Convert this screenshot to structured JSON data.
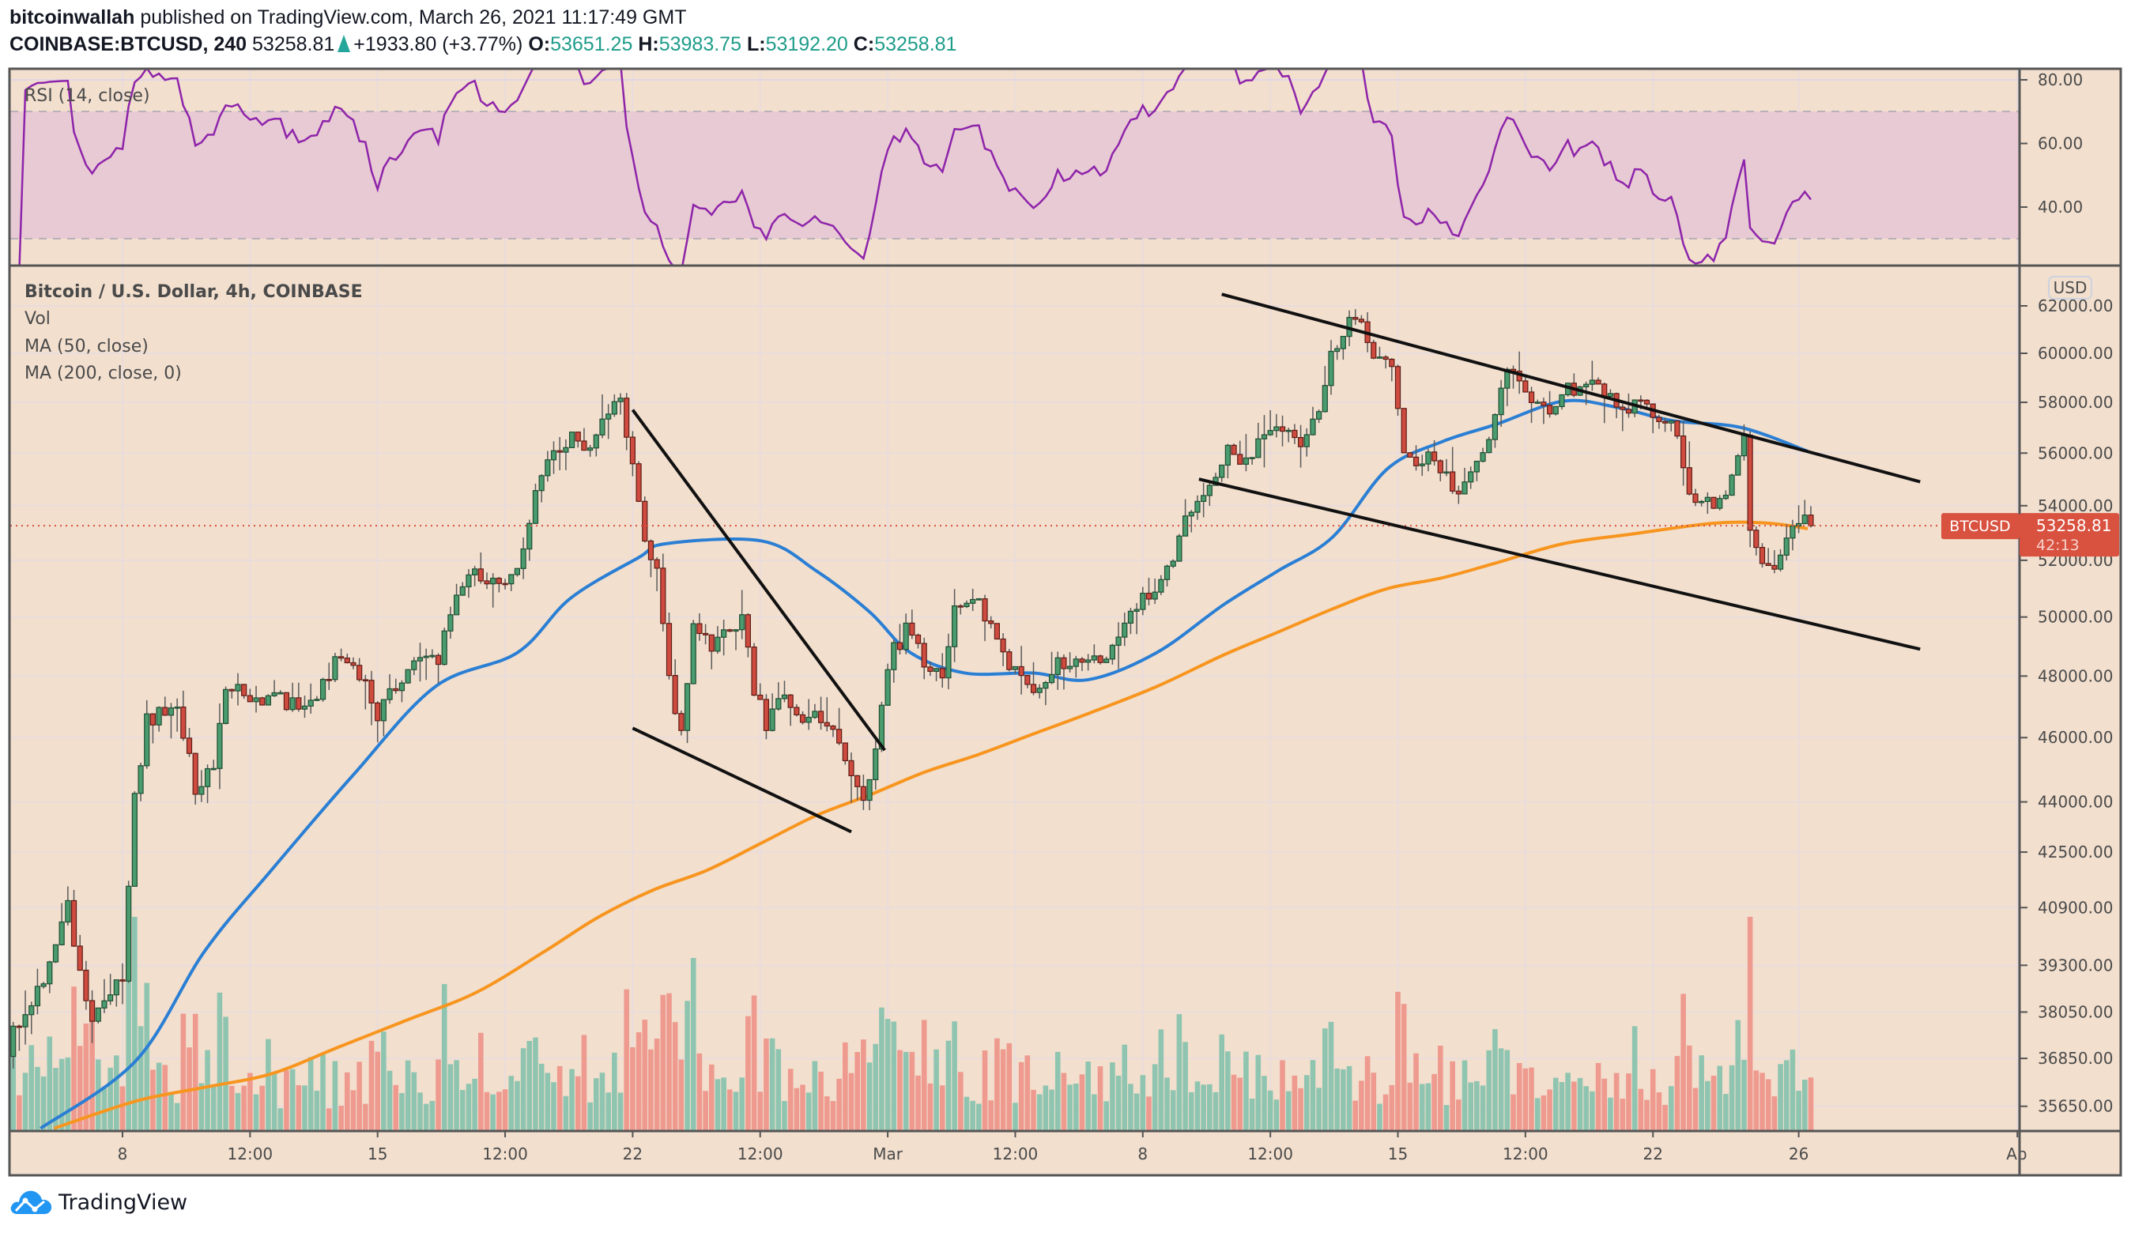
{
  "header": {
    "author": "bitcoinwallah",
    "published": "published on TradingView.com, March 26, 2021 11:17:49 GMT",
    "symbol": "COINBASE:BTCUSD, 240",
    "last": "53258.81",
    "change": "+1933.80 (+3.77%)",
    "o_label": "O:",
    "o": "53651.25",
    "h_label": "H:",
    "h": "53983.75",
    "l_label": "L:",
    "l": "53192.20",
    "c_label": "C:",
    "c": "53258.81"
  },
  "legend": {
    "rsi": "RSI (14, close)",
    "title": "Bitcoin / U.S. Dollar, 4h, COINBASE",
    "vol": "Vol",
    "ma50": "MA (50, close)",
    "ma200": "MA (200, close, 0)"
  },
  "price_axis": {
    "currency": "USD",
    "scale": "log",
    "ticks": [
      "62000.00",
      "60000.00",
      "58000.00",
      "56000.00",
      "54000.00",
      "52000.00",
      "50000.00",
      "48000.00",
      "46000.00",
      "44000.00",
      "42500.00",
      "40900.00",
      "39300.00",
      "38050.00",
      "36850.00",
      "35650.00"
    ]
  },
  "rsi_axis": {
    "ticks": [
      "80.00",
      "60.00",
      "40.00"
    ],
    "band": [
      30,
      70
    ]
  },
  "time_axis": {
    "labels": [
      {
        "label": "8",
        "t": "2021-02-08T00:00Z"
      },
      {
        "label": "12:00",
        "t": "2021-02-11T12:00Z"
      },
      {
        "label": "15",
        "t": "2021-02-15T00:00Z"
      },
      {
        "label": "12:00",
        "t": "2021-02-18T12:00Z"
      },
      {
        "label": "22",
        "t": "2021-02-22T00:00Z"
      },
      {
        "label": "12:00",
        "t": "2021-02-25T12:00Z"
      },
      {
        "label": "Mar",
        "t": "2021-03-01T00:00Z"
      },
      {
        "label": "12:00",
        "t": "2021-03-04T12:00Z"
      },
      {
        "label": "8",
        "t": "2021-03-08T00:00Z"
      },
      {
        "label": "12:00",
        "t": "2021-03-11T12:00Z"
      },
      {
        "label": "15",
        "t": "2021-03-15T00:00Z"
      },
      {
        "label": "12:00",
        "t": "2021-03-18T12:00Z"
      },
      {
        "label": "22",
        "t": "2021-03-22T00:00Z"
      },
      {
        "label": "26",
        "t": "2021-03-26T00:00Z"
      },
      {
        "label": "Ap",
        "t": "2021-04-01T00:00Z"
      }
    ]
  },
  "last_price_label": {
    "symbol": "BTCUSD",
    "price": "53258.81",
    "countdown": "42:13"
  },
  "footer": {
    "brand": "TradingView"
  },
  "colors": {
    "background": "#f2dfce",
    "up": "#4a9b6e",
    "down": "#cf4b3f",
    "vol_up": "#8fc5b0",
    "vol_down": "#ee9a8f",
    "ma50": "#2a7fd4",
    "ma200": "#f7951e",
    "rsi": "#8e24aa",
    "last_price": "#d9513f",
    "accent_teal": "#1e9c8a"
  },
  "chart_data": {
    "type": "candlestick",
    "interval": "4h",
    "last_candle": {
      "t": "2021-03-26T08:00Z",
      "o": 53651.25,
      "h": 53983.75,
      "l": 53192.2,
      "c": 53258.81
    },
    "close_path": [
      [
        "2021-02-05T00:00Z",
        37200
      ],
      [
        "2021-02-05T12:00Z",
        38000
      ],
      [
        "2021-02-06T00:00Z",
        39000
      ],
      [
        "2021-02-06T08:00Z",
        40000
      ],
      [
        "2021-02-06T16:00Z",
        40900
      ],
      [
        "2021-02-07T00:00Z",
        39000
      ],
      [
        "2021-02-07T08:00Z",
        38000
      ],
      [
        "2021-02-07T16:00Z",
        38500
      ],
      [
        "2021-02-08T04:00Z",
        38800
      ],
      [
        "2021-02-08T12:00Z",
        44000
      ],
      [
        "2021-02-08T20:00Z",
        46500
      ],
      [
        "2021-02-09T08:00Z",
        47000
      ],
      [
        "2021-02-09T16:00Z",
        46800
      ],
      [
        "2021-02-10T04:00Z",
        44500
      ],
      [
        "2021-02-10T16:00Z",
        45200
      ],
      [
        "2021-02-11T00:00Z",
        47500
      ],
      [
        "2021-02-11T16:00Z",
        47400
      ],
      [
        "2021-02-12T12:00Z",
        47200
      ],
      [
        "2021-02-13T08:00Z",
        47000
      ],
      [
        "2021-02-14T00:00Z",
        48500
      ],
      [
        "2021-02-14T16:00Z",
        48000
      ],
      [
        "2021-02-15T04:00Z",
        46800
      ],
      [
        "2021-02-15T16:00Z",
        47800
      ],
      [
        "2021-02-16T08:00Z",
        48700
      ],
      [
        "2021-02-16T20:00Z",
        48500
      ],
      [
        "2021-02-17T08:00Z",
        51000
      ],
      [
        "2021-02-17T20:00Z",
        51600
      ],
      [
        "2021-02-18T12:00Z",
        51200
      ],
      [
        "2021-02-19T00:00Z",
        51500
      ],
      [
        "2021-02-19T12:00Z",
        54500
      ],
      [
        "2021-02-20T00:00Z",
        56000
      ],
      [
        "2021-02-20T12:00Z",
        56500
      ],
      [
        "2021-02-21T00:00Z",
        56000
      ],
      [
        "2021-02-21T12:00Z",
        57500
      ],
      [
        "2021-02-21T20:00Z",
        58000
      ],
      [
        "2021-02-22T04:00Z",
        55500
      ],
      [
        "2021-02-22T12:00Z",
        53000
      ],
      [
        "2021-02-22T20:00Z",
        51500
      ],
      [
        "2021-02-23T04:00Z",
        48000
      ],
      [
        "2021-02-23T12:00Z",
        46000
      ],
      [
        "2021-02-23T20:00Z",
        49500
      ],
      [
        "2021-02-24T08:00Z",
        49000
      ],
      [
        "2021-02-24T20:00Z",
        49500
      ],
      [
        "2021-02-25T04:00Z",
        50000
      ],
      [
        "2021-02-25T12:00Z",
        47500
      ],
      [
        "2021-02-25T20:00Z",
        46500
      ],
      [
        "2021-02-26T04:00Z",
        47500
      ],
      [
        "2021-02-26T16:00Z",
        46500
      ],
      [
        "2021-02-27T04:00Z",
        47000
      ],
      [
        "2021-02-27T16:00Z",
        46200
      ],
      [
        "2021-02-28T04:00Z",
        45000
      ],
      [
        "2021-02-28T12:00Z",
        44000
      ],
      [
        "2021-02-28T20:00Z",
        45500
      ],
      [
        "2021-03-01T04:00Z",
        48500
      ],
      [
        "2021-03-01T16:00Z",
        49500
      ],
      [
        "2021-03-02T04:00Z",
        48500
      ],
      [
        "2021-03-02T16:00Z",
        48000
      ],
      [
        "2021-03-03T00:00Z",
        50500
      ],
      [
        "2021-03-03T12:00Z",
        50800
      ],
      [
        "2021-03-04T00:00Z",
        49500
      ],
      [
        "2021-03-04T12:00Z",
        48500
      ],
      [
        "2021-03-05T00:00Z",
        47500
      ],
      [
        "2021-03-05T12:00Z",
        48000
      ],
      [
        "2021-03-06T00:00Z",
        48500
      ],
      [
        "2021-03-06T12:00Z",
        48700
      ],
      [
        "2021-03-07T00:00Z",
        48300
      ],
      [
        "2021-03-07T12:00Z",
        49500
      ],
      [
        "2021-03-08T00:00Z",
        50500
      ],
      [
        "2021-03-08T12:00Z",
        51000
      ],
      [
        "2021-03-09T00:00Z",
        52000
      ],
      [
        "2021-03-09T12:00Z",
        54000
      ],
      [
        "2021-03-10T00:00Z",
        55000
      ],
      [
        "2021-03-10T12:00Z",
        56000
      ],
      [
        "2021-03-11T00:00Z",
        55500
      ],
      [
        "2021-03-11T12:00Z",
        57000
      ],
      [
        "2021-03-12T00:00Z",
        57000
      ],
      [
        "2021-03-12T12:00Z",
        56500
      ],
      [
        "2021-03-13T00:00Z",
        57500
      ],
      [
        "2021-03-13T08:00Z",
        60000
      ],
      [
        "2021-03-13T20:00Z",
        61200
      ],
      [
        "2021-03-14T04:00Z",
        61000
      ],
      [
        "2021-03-14T12:00Z",
        59500
      ],
      [
        "2021-03-15T00:00Z",
        59800
      ],
      [
        "2021-03-15T08:00Z",
        56000
      ],
      [
        "2021-03-15T20:00Z",
        55500
      ],
      [
        "2021-03-16T04:00Z",
        56000
      ],
      [
        "2021-03-16T16:00Z",
        54500
      ],
      [
        "2021-03-17T00:00Z",
        55000
      ],
      [
        "2021-03-17T08:00Z",
        56000
      ],
      [
        "2021-03-17T16:00Z",
        56500
      ],
      [
        "2021-03-18T00:00Z",
        58800
      ],
      [
        "2021-03-18T08:00Z",
        59500
      ],
      [
        "2021-03-18T20:00Z",
        58000
      ],
      [
        "2021-03-19T08:00Z",
        57800
      ],
      [
        "2021-03-19T20:00Z",
        58500
      ],
      [
        "2021-03-20T08:00Z",
        58600
      ],
      [
        "2021-03-20T20:00Z",
        58500
      ],
      [
        "2021-03-21T08:00Z",
        57800
      ],
      [
        "2021-03-21T20:00Z",
        58000
      ],
      [
        "2021-03-22T04:00Z",
        57200
      ],
      [
        "2021-03-22T12:00Z",
        57500
      ],
      [
        "2021-03-22T20:00Z",
        56800
      ],
      [
        "2021-03-23T04:00Z",
        54500
      ],
      [
        "2021-03-23T12:00Z",
        54000
      ],
      [
        "2021-03-23T20:00Z",
        54200
      ],
      [
        "2021-03-24T04:00Z",
        54500
      ],
      [
        "2021-03-24T12:00Z",
        56000
      ],
      [
        "2021-03-24T16:00Z",
        56500
      ],
      [
        "2021-03-24T20:00Z",
        53000
      ],
      [
        "2021-03-25T04:00Z",
        52000
      ],
      [
        "2021-03-25T12:00Z",
        51800
      ],
      [
        "2021-03-25T20:00Z",
        52500
      ],
      [
        "2021-03-26T04:00Z",
        53651.25
      ]
    ],
    "ma50": [
      [
        "2021-02-05T18:00Z",
        35110
      ],
      [
        "2021-02-08T09:00Z",
        36800
      ],
      [
        "2021-02-10T06:00Z",
        39680
      ],
      [
        "2021-02-12T02:00Z",
        41970
      ],
      [
        "2021-02-14T08:00Z",
        44830
      ],
      [
        "2021-02-16T14:00Z",
        47650
      ],
      [
        "2021-02-18T20:00Z",
        48780
      ],
      [
        "2021-02-20T07:00Z",
        50650
      ],
      [
        "2021-02-22T04:00Z",
        52100
      ],
      [
        "2021-02-22T22:00Z",
        52600
      ],
      [
        "2021-02-25T13:00Z",
        52700
      ],
      [
        "2021-02-27T01:00Z",
        51620
      ],
      [
        "2021-02-28T12:00Z",
        50180
      ],
      [
        "2021-03-01T15:00Z",
        48780
      ],
      [
        "2021-03-03T03:00Z",
        48100
      ],
      [
        "2021-03-05T00:00Z",
        48100
      ],
      [
        "2021-03-06T12:00Z",
        47880
      ],
      [
        "2021-03-08T09:00Z",
        48780
      ],
      [
        "2021-03-10T05:00Z",
        50420
      ],
      [
        "2021-03-11T17:00Z",
        51620
      ],
      [
        "2021-03-13T05:00Z",
        52840
      ],
      [
        "2021-03-14T17:00Z",
        55390
      ],
      [
        "2021-03-16T05:00Z",
        56440
      ],
      [
        "2021-03-17T17:00Z",
        57130
      ],
      [
        "2021-03-19T13:00Z",
        58050
      ],
      [
        "2021-03-21T01:00Z",
        57790
      ],
      [
        "2021-03-22T13:00Z",
        57270
      ],
      [
        "2021-03-24T10:00Z",
        57000
      ],
      [
        "2021-03-26T06:00Z",
        56070
      ]
    ],
    "ma200": [
      [
        "2021-02-06T03:00Z",
        35110
      ],
      [
        "2021-02-08T09:00Z",
        35780
      ],
      [
        "2021-02-10T06:00Z",
        36120
      ],
      [
        "2021-02-12T02:00Z",
        36460
      ],
      [
        "2021-02-13T23:00Z",
        37150
      ],
      [
        "2021-02-15T20:00Z",
        37850
      ],
      [
        "2021-02-17T17:00Z",
        38570
      ],
      [
        "2021-02-19T14:00Z",
        39680
      ],
      [
        "2021-02-21T01:00Z",
        40620
      ],
      [
        "2021-02-22T13:00Z",
        41390
      ],
      [
        "2021-02-24T01:00Z",
        41970
      ],
      [
        "2021-02-25T13:00Z",
        42770
      ],
      [
        "2021-02-27T01:00Z",
        43590
      ],
      [
        "2021-02-28T12:00Z",
        44210
      ],
      [
        "2021-03-02T00:00Z",
        44910
      ],
      [
        "2021-03-03T12:00Z",
        45470
      ],
      [
        "2021-03-05T00:00Z",
        46120
      ],
      [
        "2021-03-06T12:00Z",
        46770
      ],
      [
        "2021-03-08T09:00Z",
        47650
      ],
      [
        "2021-03-10T05:00Z",
        48700
      ],
      [
        "2021-03-11T17:00Z",
        49480
      ],
      [
        "2021-03-13T05:00Z",
        50280
      ],
      [
        "2021-03-14T17:00Z",
        50990
      ],
      [
        "2021-03-16T05:00Z",
        51370
      ],
      [
        "2021-03-17T17:00Z",
        51910
      ],
      [
        "2021-03-19T13:00Z",
        52600
      ],
      [
        "2021-03-21T10:00Z",
        52950
      ],
      [
        "2021-03-23T16:00Z",
        53350
      ],
      [
        "2021-03-25T04:00Z",
        53350
      ],
      [
        "2021-03-26T06:00Z",
        53150
      ]
    ],
    "trendlines": [
      {
        "from": [
          "2021-02-22T00:00Z",
          57700
        ],
        "to": [
          "2021-02-28T22:00Z",
          45600
        ]
      },
      {
        "from": [
          "2021-02-22T00:00Z",
          46300
        ],
        "to": [
          "2021-02-28T00:00Z",
          43100
        ]
      },
      {
        "from": [
          "2021-03-10T04:00Z",
          62500
        ],
        "to": [
          "2021-03-29T08:00Z",
          54900
        ]
      },
      {
        "from": [
          "2021-03-09T13:00Z",
          55000
        ],
        "to": [
          "2021-03-29T08:00Z",
          48900
        ]
      }
    ],
    "rsi_period": 14
  }
}
